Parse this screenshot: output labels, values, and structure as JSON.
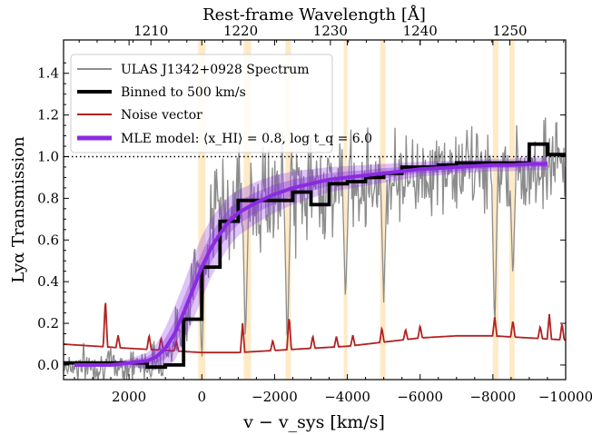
{
  "chart_data": {
    "type": "line",
    "title": "",
    "xlabel": "v − v_sys [km/s]",
    "ylabel": "Lyα Transmission",
    "top_xlabel": "Rest-frame Wavelength [Å]",
    "xlim": [
      3800,
      -10000
    ],
    "ylim": [
      -0.07,
      1.56
    ],
    "x_ticks": [
      2000,
      0,
      -2000,
      -4000,
      -6000,
      -8000,
      -10000
    ],
    "x_tick_labels": [
      "2000",
      "0",
      "−2000",
      "−4000",
      "−6000",
      "−8000",
      "−10000"
    ],
    "y_ticks": [
      0.0,
      0.2,
      0.4,
      0.6,
      0.8,
      1.0,
      1.2,
      1.4
    ],
    "y_tick_labels": [
      "0.0",
      "0.2",
      "0.4",
      "0.6",
      "0.8",
      "1.0",
      "1.2",
      "1.4"
    ],
    "top_axis_ticks": [
      1210,
      1220,
      1230,
      1240,
      1250
    ],
    "top_axis_tick_labels": [
      "1210",
      "1220",
      "1230",
      "1240",
      "1250"
    ],
    "reference_line": 1.0,
    "legend_position": "upper-left",
    "legend": [
      {
        "label": "ULAS J1342+0928 Spectrum",
        "color": "#8c8c8c"
      },
      {
        "label": "Binned to 500 km/s",
        "color": "#000000"
      },
      {
        "label": "Noise vector",
        "color": "#b22222"
      },
      {
        "label": "MLE model: ⟨x_HI⟩ = 0.8, log t_q = 6.0",
        "color": "#8a2be2"
      }
    ],
    "masked_bands_kms": [
      [
        100,
        -100
      ],
      [
        -1150,
        -1350
      ],
      [
        -2300,
        -2450
      ],
      [
        -3900,
        -4000
      ],
      [
        -4900,
        -5050
      ],
      [
        -8000,
        -8150
      ],
      [
        -8450,
        -8600
      ]
    ],
    "binned": {
      "name": "Binned to 500 km/s",
      "x": [
        3800,
        2000,
        1500,
        1000,
        500,
        0,
        -500,
        -1000,
        -1500,
        -2000,
        -2500,
        -3000,
        -3500,
        -4000,
        -4500,
        -5000,
        -5500,
        -6000,
        -6500,
        -7000,
        -7500,
        -8000,
        -8500,
        -9000,
        -9500,
        -10000
      ],
      "y": [
        0.01,
        0.01,
        -0.01,
        0.0,
        0.22,
        0.47,
        0.69,
        0.79,
        0.79,
        0.79,
        0.83,
        0.77,
        0.87,
        0.88,
        0.9,
        0.92,
        0.95,
        0.95,
        0.96,
        0.97,
        0.97,
        0.97,
        0.97,
        1.06,
        1.01,
        1.01
      ]
    },
    "model": {
      "name": "MLE model",
      "x": [
        3500,
        3000,
        2500,
        2000,
        1500,
        1250,
        1000,
        750,
        500,
        250,
        0,
        -250,
        -500,
        -750,
        -1000,
        -1500,
        -2000,
        -2500,
        -3000,
        -3500,
        -4000,
        -4500,
        -5000,
        -5500,
        -6000,
        -6500,
        -7000,
        -7500,
        -8000,
        -8500,
        -9000,
        -9500
      ],
      "y": [
        0.0,
        0.0,
        0.0,
        0.01,
        0.02,
        0.04,
        0.08,
        0.15,
        0.25,
        0.36,
        0.47,
        0.56,
        0.63,
        0.69,
        0.73,
        0.78,
        0.82,
        0.85,
        0.87,
        0.89,
        0.9,
        0.91,
        0.92,
        0.93,
        0.94,
        0.945,
        0.95,
        0.955,
        0.96,
        0.96,
        0.965,
        0.965
      ],
      "band_inner_half_width": [
        0,
        0,
        0,
        0.01,
        0.02,
        0.03,
        0.05,
        0.06,
        0.07,
        0.07,
        0.07,
        0.07,
        0.065,
        0.06,
        0.055,
        0.05,
        0.045,
        0.04,
        0.035,
        0.03,
        0.03,
        0.025,
        0.025,
        0.02,
        0.02,
        0.02,
        0.02,
        0.015,
        0.015,
        0.015,
        0.015,
        0.015
      ],
      "band_outer_half_width": [
        0,
        0,
        0.01,
        0.02,
        0.04,
        0.06,
        0.1,
        0.13,
        0.14,
        0.15,
        0.15,
        0.14,
        0.13,
        0.12,
        0.11,
        0.1,
        0.09,
        0.08,
        0.07,
        0.06,
        0.055,
        0.05,
        0.045,
        0.04,
        0.035,
        0.035,
        0.03,
        0.03,
        0.03,
        0.03,
        0.03,
        0.03
      ]
    },
    "noise": {
      "name": "Noise vector",
      "x": [
        3800,
        2000,
        1000,
        0,
        -1000,
        -2000,
        -3000,
        -4000,
        -5000,
        -6000,
        -7000,
        -8000,
        -9000,
        -10000
      ],
      "y": [
        0.1,
        0.08,
        0.07,
        0.06,
        0.06,
        0.07,
        0.08,
        0.09,
        0.11,
        0.13,
        0.14,
        0.14,
        0.13,
        0.12
      ],
      "spikes": [
        {
          "x": 2650,
          "h": 0.23
        },
        {
          "x": 2300,
          "h": 0.06
        },
        {
          "x": 1450,
          "h": 0.07
        },
        {
          "x": 1120,
          "h": 0.06
        },
        {
          "x": 700,
          "h": 0.05
        },
        {
          "x": -1120,
          "h": 0.14
        },
        {
          "x": -1950,
          "h": 0.05
        },
        {
          "x": -2400,
          "h": 0.16
        },
        {
          "x": -3050,
          "h": 0.06
        },
        {
          "x": -3700,
          "h": 0.05
        },
        {
          "x": -4150,
          "h": 0.05
        },
        {
          "x": -4950,
          "h": 0.07
        },
        {
          "x": -5600,
          "h": 0.05
        },
        {
          "x": -6000,
          "h": 0.06
        },
        {
          "x": -8050,
          "h": 0.09
        },
        {
          "x": -8550,
          "h": 0.08
        },
        {
          "x": -9300,
          "h": 0.06
        },
        {
          "x": -9550,
          "h": 0.12
        },
        {
          "x": -9900,
          "h": 0.08
        }
      ]
    },
    "spectrum": {
      "name": "ULAS J1342+0928 Spectrum",
      "x": [
        3800,
        3000,
        2000,
        1500,
        1000,
        500,
        250,
        0,
        -250,
        -500,
        -1000,
        -1500,
        -2000,
        -2500,
        -3000,
        -4000,
        -5000,
        -6000,
        -7000,
        -8000,
        -9000,
        -10000
      ],
      "y": [
        0.0,
        0.0,
        0.0,
        0.0,
        0.05,
        0.2,
        0.4,
        0.6,
        0.7,
        0.75,
        0.8,
        0.8,
        0.8,
        0.82,
        0.85,
        0.88,
        0.9,
        0.92,
        0.93,
        0.95,
        0.96,
        0.97
      ],
      "scatter": [
        0.07,
        0.07,
        0.07,
        0.07,
        0.08,
        0.12,
        0.15,
        0.18,
        0.2,
        0.2,
        0.22,
        0.22,
        0.22,
        0.22,
        0.2,
        0.18,
        0.18,
        0.16,
        0.16,
        0.18,
        0.2,
        0.2
      ],
      "absorption_dips": [
        {
          "x": 0,
          "y": 0.0
        },
        {
          "x": -1200,
          "y": 0.1
        },
        {
          "x": -2350,
          "y": 0.05
        },
        {
          "x": -3950,
          "y": 0.3
        },
        {
          "x": -5000,
          "y": 0.3
        },
        {
          "x": -8050,
          "y": 0.15
        },
        {
          "x": -8550,
          "y": 0.4
        }
      ]
    }
  }
}
